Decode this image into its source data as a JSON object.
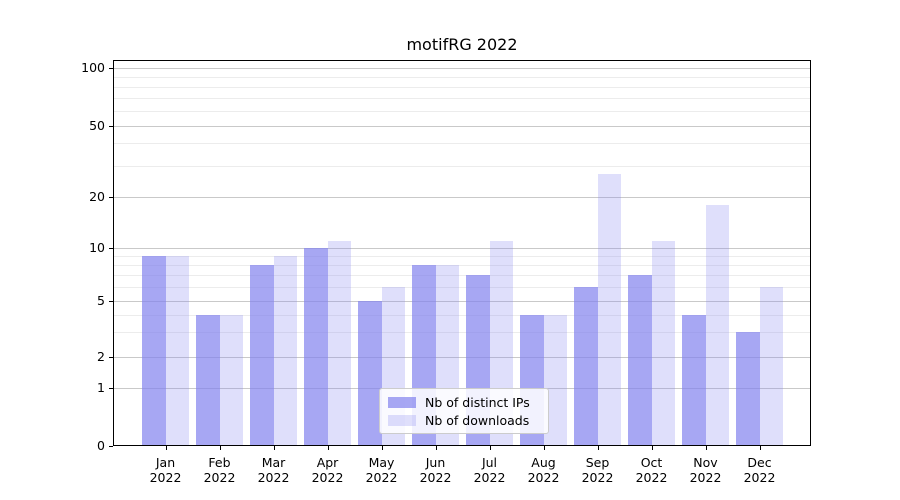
{
  "colors": {
    "background": "#ffffff",
    "axis": "#000000",
    "grid_major": "#c9c9c9",
    "grid_minor": "#ececec",
    "legend_border": "#cccccc",
    "series_base": "#8282ee"
  },
  "chart_data": {
    "type": "bar",
    "title": "motifRG 2022",
    "categories": [
      "Jan 2022",
      "Feb 2022",
      "Mar 2022",
      "Apr 2022",
      "May 2022",
      "Jun 2022",
      "Jul 2022",
      "Aug 2022",
      "Sep 2022",
      "Oct 2022",
      "Nov 2022",
      "Dec 2022"
    ],
    "series": [
      {
        "name": "Nb of distinct IPs",
        "alpha": 0.7,
        "values": [
          9,
          4,
          8,
          10,
          5,
          8,
          7,
          4,
          6,
          7,
          4,
          3
        ]
      },
      {
        "name": "Nb of downloads",
        "alpha": 0.26,
        "values": [
          9,
          4,
          9,
          11,
          6,
          8,
          11,
          4,
          27,
          11,
          18,
          6
        ]
      }
    ],
    "xlabel": "",
    "ylabel": "",
    "y_axis": {
      "scale": "log-like",
      "ticks": [
        0,
        1,
        2,
        5,
        10,
        20,
        50,
        100
      ],
      "minor_ticks": [
        3,
        4,
        6,
        7,
        8,
        9,
        30,
        40,
        60,
        70,
        80,
        90
      ],
      "ylim": [
        0,
        110
      ]
    },
    "grid": true,
    "legend": {
      "position": "lower center",
      "entries": [
        "Nb of distinct IPs",
        "Nb of downloads"
      ]
    }
  }
}
